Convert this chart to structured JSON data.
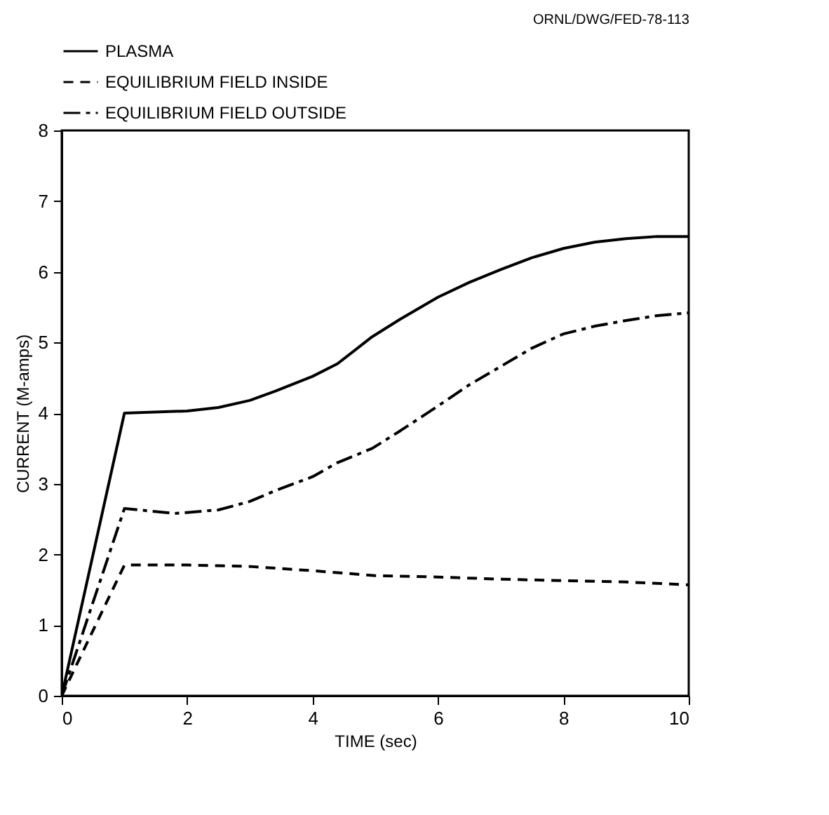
{
  "chart_data": {
    "type": "line",
    "xlabel": "TIME (sec)",
    "ylabel": "CURRENT (M-amps)",
    "annotations": [
      "ORNL/DWG/FED-78-113"
    ],
    "series": [
      {
        "name": "PLASMA",
        "color": "#000000",
        "line_style": "solid",
        "x": [
          0,
          1,
          2,
          2.5,
          3,
          3.4,
          4,
          4.4,
          4.95,
          5.4,
          6,
          6.5,
          7,
          7.5,
          8,
          8.5,
          9,
          9.5,
          10
        ],
        "values": [
          0,
          4.0,
          4.03,
          4.08,
          4.18,
          4.31,
          4.52,
          4.7,
          5.08,
          5.33,
          5.64,
          5.85,
          6.03,
          6.2,
          6.33,
          6.42,
          6.47,
          6.5,
          6.5
        ]
      },
      {
        "name": "EQUILIBRIUM FIELD INSIDE",
        "color": "#000000",
        "line_style": "dashed",
        "x": [
          0,
          1,
          2,
          3,
          4,
          5,
          6,
          7,
          8,
          9,
          10
        ],
        "values": [
          0,
          1.85,
          1.85,
          1.83,
          1.77,
          1.7,
          1.68,
          1.65,
          1.63,
          1.61,
          1.57
        ]
      },
      {
        "name": "EQUILIBRIUM FIELD OUTSIDE",
        "color": "#000000",
        "line_style": "dashdot",
        "x": [
          0,
          1,
          1.8,
          2.5,
          3,
          3.4,
          4,
          4.4,
          4.95,
          5.4,
          6,
          6.5,
          7,
          7.5,
          8,
          8.5,
          9,
          9.5,
          10
        ],
        "values": [
          0,
          2.65,
          2.58,
          2.63,
          2.75,
          2.9,
          3.1,
          3.3,
          3.5,
          3.75,
          4.1,
          4.4,
          4.66,
          4.92,
          5.12,
          5.23,
          5.31,
          5.38,
          5.42
        ]
      }
    ],
    "xlim": [
      0,
      10
    ],
    "xticks": [
      0,
      2,
      4,
      6,
      8,
      10
    ],
    "ylim": [
      0,
      8
    ],
    "yticks": [
      0,
      1,
      2,
      3,
      4,
      5,
      6,
      7,
      8
    ],
    "grid": false,
    "legend": "top",
    "marker": "none"
  }
}
